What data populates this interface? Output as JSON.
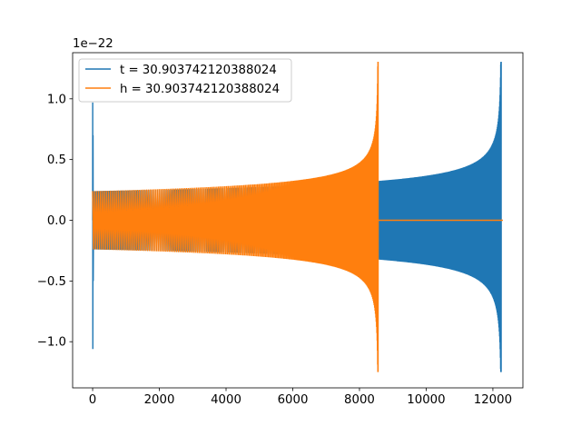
{
  "chart_data": {
    "type": "line",
    "title": "",
    "xlabel": "",
    "ylabel": "",
    "y_offset_label": "1e−22",
    "xlim": [
      -600,
      12900
    ],
    "ylim": [
      -1.38,
      1.38
    ],
    "y_scale_factor": 1e-22,
    "xticks": [
      0,
      2000,
      4000,
      6000,
      8000,
      10000,
      12000
    ],
    "xtick_labels": [
      "0",
      "2000",
      "4000",
      "6000",
      "8000",
      "10000",
      "12000"
    ],
    "yticks": [
      -1.0,
      -0.5,
      0.0,
      0.5,
      1.0
    ],
    "ytick_labels": [
      "−1.0",
      "−0.5",
      "0.0",
      "0.5",
      "1.0"
    ],
    "grid": false,
    "legend_position": "upper left",
    "series": [
      {
        "name": "t = 30.903742120388024",
        "color": "#1f77b4",
        "description_kind": "oscillation",
        "initial_burst": {
          "x_start": 0,
          "x_end": 30,
          "y_max": 0.97,
          "y_min": -1.06
        },
        "x_range": [
          0,
          12250
        ],
        "amplitude_start": 0.24,
        "amplitude_peak": 1.3,
        "amplitude_trough_peak": -1.25,
        "merger_x": 12250,
        "flat_after_merger_value": 0.0
      },
      {
        "name": "h = 30.903742120388024",
        "color": "#ff7f0e",
        "description_kind": "oscillation",
        "x_range": [
          0,
          8560
        ],
        "amplitude_start": 0.24,
        "amplitude_peak": 1.3,
        "amplitude_trough_peak": -1.25,
        "merger_x": 8560,
        "flat_after_merger_value": 0.0,
        "flat_until_x": 12300
      }
    ]
  },
  "legend": {
    "entries": [
      {
        "label": "t = 30.903742120388024",
        "color": "#1f77b4"
      },
      {
        "label": "h = 30.903742120388024",
        "color": "#ff7f0e"
      }
    ]
  }
}
